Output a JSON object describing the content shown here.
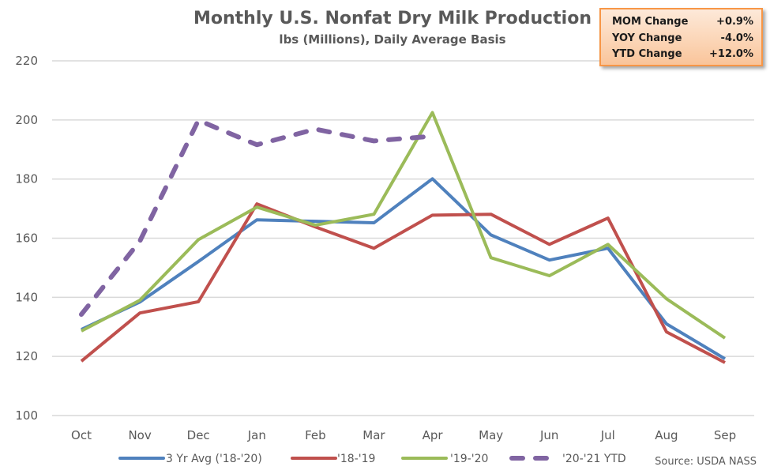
{
  "chart_data": {
    "type": "line",
    "title": "Monthly U.S. Nonfat Dry Milk Production",
    "subtitle": "lbs (Millions), Daily Average Basis",
    "xlabel": "",
    "ylabel": "",
    "categories": [
      "Oct",
      "Nov",
      "Dec",
      "Jan",
      "Feb",
      "Mar",
      "Apr",
      "May",
      "Jun",
      "Jul",
      "Aug",
      "Sep"
    ],
    "ylim": [
      100,
      220
    ],
    "yticks": [
      100,
      120,
      140,
      160,
      180,
      200,
      220
    ],
    "grid": true,
    "legend_position": "bottom",
    "series": [
      {
        "name": "3 Yr Avg ('18-'20)",
        "color": "#4f81bd",
        "dashed": false,
        "values": [
          129.1,
          138.4,
          152.1,
          166.2,
          165.7,
          165.2,
          180.1,
          161.1,
          152.6,
          156.6,
          131.0,
          119.2
        ]
      },
      {
        "name": "'18-'19",
        "color": "#c0504d",
        "dashed": false,
        "values": [
          118.4,
          134.7,
          138.5,
          171.6,
          163.8,
          156.6,
          167.8,
          168.1,
          157.9,
          166.8,
          128.3,
          117.9
        ]
      },
      {
        "name": "'19-'20",
        "color": "#9bbb59",
        "dashed": false,
        "values": [
          128.6,
          139.0,
          159.5,
          170.5,
          164.4,
          168.1,
          202.5,
          153.4,
          147.3,
          157.9,
          139.5,
          126.2
        ]
      },
      {
        "name": "'20-'21 YTD",
        "color": "#8064a2",
        "dashed": true,
        "values": [
          134.2,
          159.0,
          199.9,
          191.6,
          196.9,
          192.9,
          194.5,
          null,
          null,
          null,
          null,
          null
        ]
      }
    ],
    "annotations": [
      "Source: USDA NASS"
    ]
  },
  "stats_box": {
    "rows": [
      {
        "label": "MOM Change",
        "value": "+0.9%"
      },
      {
        "label": "YOY Change",
        "value": "-4.0%"
      },
      {
        "label": "YTD Change",
        "value": "+12.0%"
      }
    ],
    "border_color": "#f79646"
  },
  "source_label": "Source: USDA NASS",
  "colors": {
    "grid": "#d9d9d9",
    "text": "#595959"
  }
}
